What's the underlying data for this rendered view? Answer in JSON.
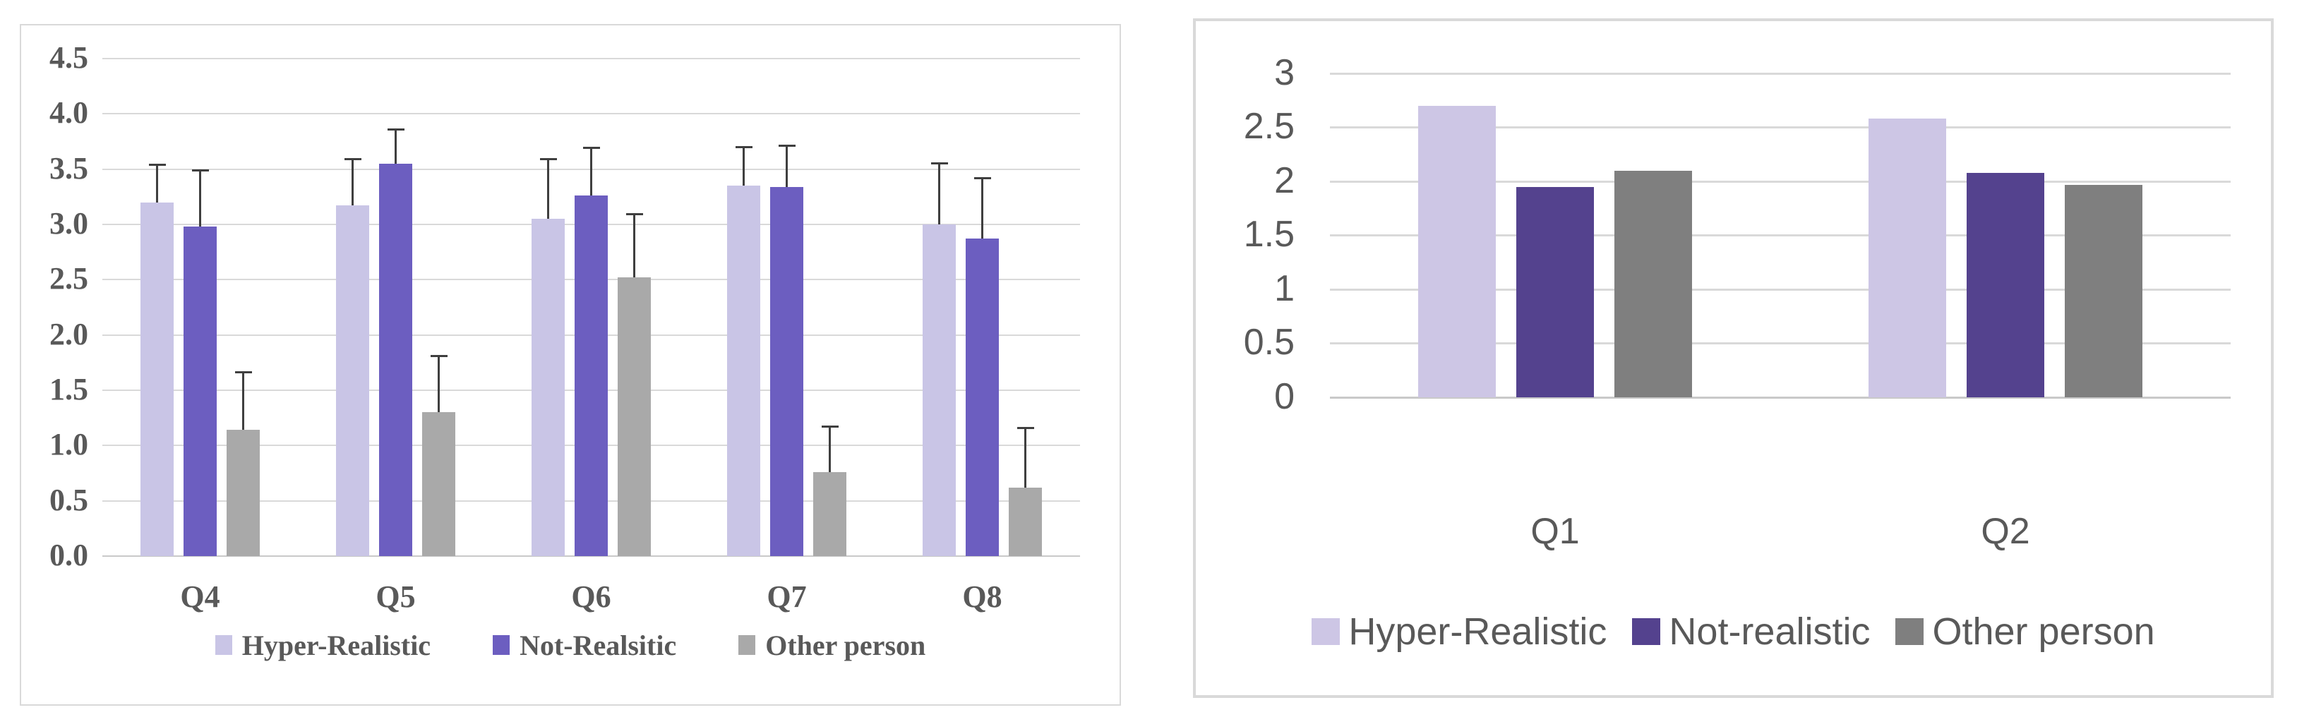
{
  "page": {
    "background_color": "#ffffff",
    "panel_border_color": "#d9d9d9"
  },
  "chart_data": [
    {
      "type": "bar",
      "title": "",
      "xlabel": "",
      "ylabel": "",
      "categories": [
        "Q4",
        "Q5",
        "Q6",
        "Q7",
        "Q8"
      ],
      "series": [
        {
          "name": "Hyper-Realistic",
          "color": "#c9c5e6",
          "values": [
            3.2,
            3.17,
            3.05,
            3.35,
            3.0
          ],
          "error_top": [
            3.55,
            3.6,
            3.6,
            3.71,
            3.56
          ]
        },
        {
          "name": "Not-Realsitic",
          "color": "#6c5ec0",
          "values": [
            2.98,
            3.55,
            3.26,
            3.34,
            2.87
          ],
          "error_top": [
            3.5,
            3.87,
            3.7,
            3.72,
            3.43
          ]
        },
        {
          "name": "Other person",
          "color": "#a9a9a9",
          "values": [
            1.14,
            1.3,
            2.52,
            0.76,
            0.62
          ],
          "error_top": [
            1.67,
            1.82,
            3.1,
            1.18,
            1.17
          ]
        }
      ],
      "error_bars": "plus-only",
      "y_axis": {
        "min": 0,
        "max": 4.5,
        "step": 0.5,
        "tick_labels": [
          "0.0",
          "0.5",
          "1.0",
          "1.5",
          "2.0",
          "2.5",
          "3.0",
          "3.5",
          "4.0",
          "4.5"
        ]
      },
      "grid": true,
      "legend_position": "bottom"
    },
    {
      "type": "bar",
      "title": "",
      "xlabel": "",
      "ylabel": "",
      "categories": [
        "Q1",
        "Q2"
      ],
      "series": [
        {
          "name": "Hyper-Realistic",
          "color": "#cdc6e5",
          "values": [
            2.7,
            2.58
          ]
        },
        {
          "name": "Not-realistic",
          "color": "#54428e",
          "values": [
            1.95,
            2.08
          ]
        },
        {
          "name": "Other person",
          "color": "#7f7f7f",
          "values": [
            2.1,
            1.97
          ]
        }
      ],
      "error_bars": "none",
      "y_axis": {
        "min": 0,
        "max": 3,
        "step": 0.5,
        "tick_labels": [
          "0",
          "0.5",
          "1",
          "1.5",
          "2",
          "2.5",
          "3"
        ]
      },
      "grid": true,
      "legend_position": "bottom"
    }
  ]
}
